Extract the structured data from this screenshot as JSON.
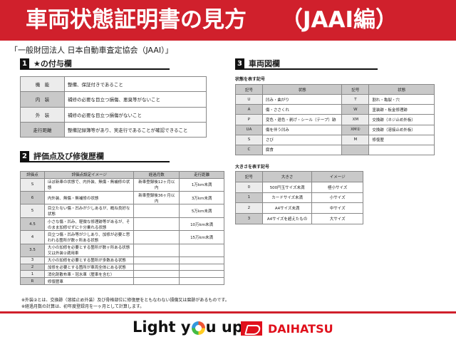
{
  "header": {
    "title": "車両状態証明書の見方",
    "subtitle": "（JAAI編）"
  },
  "source": "「一般財団法人 日本自動車査定協会（JAAI）」",
  "section1": {
    "num": "1",
    "title": "★の付与欄",
    "rows": [
      {
        "k": "機　能",
        "v": "整備、保証付きであること"
      },
      {
        "k": "内　装",
        "v": "補修の必要な目立つ損傷、悪臭等がないこと"
      },
      {
        "k": "外　装",
        "v": "補修の必要な目立つ損傷がないこと"
      },
      {
        "k": "走行距離",
        "v": "整備記録簿等があり、実走行であることが確認できること"
      }
    ]
  },
  "section2": {
    "num": "2",
    "title": "評価点及び修復歴欄",
    "headers": [
      "評価点",
      "評価点設定イメージ",
      "経過月数",
      "走行距離"
    ],
    "rows": [
      [
        "S",
        "ほぼ新車の状態で、内外装、無傷・無補修の状態",
        "新車登録後12ヶ月以内",
        "1万km未満"
      ],
      [
        "6",
        "内外装、無傷・無補修の状態",
        "新車登録後36ヶ月以内",
        "3万km未満"
      ],
      [
        "5",
        "目立たない傷・凹みが少しあるが、概ね良好な状態",
        "",
        "5万km未満"
      ],
      [
        "4.5",
        "小さな傷・凹み、軽微な修理跡等があるが、そのまま加修せずに十分乗れる状態",
        "",
        "10万km未満"
      ],
      [
        "4",
        "目立つ傷・凹み等が少しあり、加修が必要と思われる箇所が数ヶ所ある状態",
        "",
        "15万km未満"
      ],
      [
        "3.5",
        "大小の加修を必要とする箇所が数ヶ所ある状態又は外装②適用車",
        "",
        ""
      ],
      [
        "3",
        "大小の加修を必要とする箇所が多数ある状態",
        "",
        ""
      ],
      [
        "2",
        "加修を必要とする箇所が車両全体にある状態",
        "",
        ""
      ],
      [
        "1",
        "消化剤散布車・冠水車（歴車を含む）",
        "",
        ""
      ],
      [
        "R",
        "修復歴車",
        "",
        ""
      ]
    ]
  },
  "notes": [
    "※外装②とは、交換跡（溶接止め外装）及び骨格部位に修復歴をともなわない損傷又は腐跡があるものです。",
    "※経過月数の計算は、初年度登録月を一ヶ月として計算します。"
  ],
  "section3": {
    "num": "3",
    "title": "車両図欄",
    "state_label": "状態を表す記号",
    "state_headers": [
      "記号",
      "状態",
      "記号",
      "状態"
    ],
    "state_rows": [
      [
        "U",
        "凹み・曲がり",
        "T",
        "割れ・亀裂・穴"
      ],
      [
        "A",
        "傷・ささくれ",
        "W",
        "塗装跡・板金修理跡"
      ],
      [
        "P",
        "変色・退色・剥げ・シール（テープ）跡",
        "XM",
        "交換跡（ネジ止め外板）"
      ],
      [
        "UA",
        "傷を伴う凹み",
        "XM②",
        "交換跡（溶接止め外板）"
      ],
      [
        "S",
        "さび",
        "M",
        "修復歴"
      ],
      [
        "C",
        "腐食",
        "",
        ""
      ]
    ],
    "size_label": "大きさを表す記号",
    "size_headers": [
      "記号",
      "大きさ",
      "イメージ"
    ],
    "size_rows": [
      [
        "0",
        "500円玉サイズ未満",
        "極小サイズ"
      ],
      [
        "1",
        "カードサイズ未満",
        "小サイズ"
      ],
      [
        "2",
        "A4サイズ未満",
        "中サイズ"
      ],
      [
        "3",
        "A4サイズを超えたもの",
        "大サイズ"
      ]
    ]
  },
  "footer": {
    "slogan_a": "Light y",
    "slogan_b": "u up",
    "brand": "DAIHATSU"
  },
  "colors": {
    "brand_red": "#d0202c"
  }
}
